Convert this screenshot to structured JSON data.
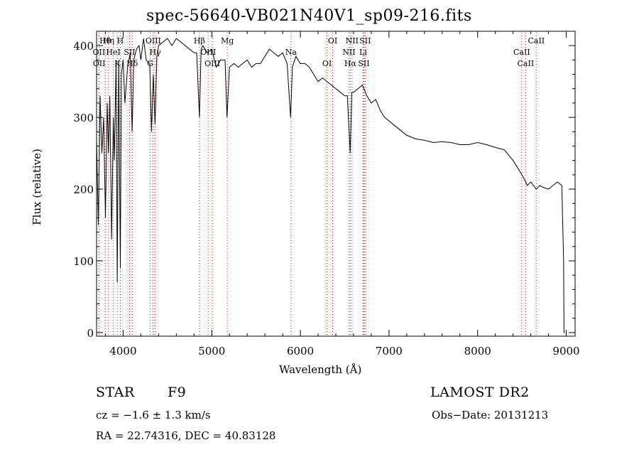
{
  "chart_data": {
    "type": "line",
    "title": "spec-56640-VB021N40V1_sp09-216.fits",
    "xlabel": "Wavelength (Å)",
    "ylabel": "Flux (relative)",
    "xlim": [
      3700,
      9100
    ],
    "ylim": [
      -5,
      420
    ],
    "x_ticks": [
      4000,
      5000,
      6000,
      7000,
      8000,
      9000
    ],
    "y_ticks": [
      0,
      100,
      200,
      300,
      400
    ],
    "grid": false,
    "colors": {
      "spectrum": "#000000",
      "line_markers": "#ff0000"
    },
    "series": [
      {
        "x": [
          3700,
          3720,
          3740,
          3760,
          3780,
          3800,
          3820,
          3835,
          3850,
          3870,
          3889,
          3900,
          3920,
          3933,
          3950,
          3968,
          3980,
          4000,
          4020,
          4050,
          4080,
          4101,
          4120,
          4150,
          4180,
          4200,
          4230,
          4260,
          4300,
          4320,
          4340,
          4360,
          4380,
          4400,
          4450,
          4500,
          4550,
          4600,
          4650,
          4700,
          4750,
          4800,
          4830,
          4861,
          4880,
          4900,
          4950,
          5000,
          5050,
          5100,
          5150,
          5172,
          5200,
          5250,
          5300,
          5350,
          5400,
          5450,
          5500,
          5550,
          5600,
          5650,
          5700,
          5750,
          5800,
          5850,
          5890,
          5910,
          5950,
          6000,
          6050,
          6100,
          6150,
          6200,
          6250,
          6300,
          6350,
          6400,
          6450,
          6500,
          6530,
          6563,
          6580,
          6600,
          6650,
          6700,
          6750,
          6800,
          6850,
          6900,
          6950,
          7000,
          7050,
          7100,
          7150,
          7200,
          7300,
          7400,
          7500,
          7600,
          7700,
          7800,
          7900,
          8000,
          8100,
          8200,
          8300,
          8400,
          8450,
          8500,
          8542,
          8560,
          8600,
          8662,
          8700,
          8750,
          8800,
          8850,
          8900,
          8950,
          8970,
          8975,
          8985
        ],
        "y": [
          270,
          150,
          330,
          250,
          300,
          160,
          320,
          250,
          330,
          130,
          300,
          240,
          380,
          70,
          380,
          90,
          360,
          380,
          320,
          370,
          390,
          280,
          380,
          395,
          400,
          380,
          410,
          380,
          375,
          280,
          360,
          290,
          385,
          400,
          405,
          410,
          400,
          410,
          405,
          400,
          395,
          390,
          390,
          300,
          395,
          400,
          390,
          395,
          370,
          380,
          380,
          300,
          370,
          375,
          370,
          375,
          380,
          370,
          375,
          375,
          385,
          395,
          390,
          385,
          390,
          375,
          300,
          370,
          385,
          375,
          375,
          370,
          360,
          350,
          355,
          350,
          345,
          340,
          335,
          330,
          330,
          250,
          335,
          335,
          340,
          345,
          330,
          320,
          325,
          310,
          300,
          295,
          290,
          285,
          280,
          275,
          270,
          268,
          265,
          266,
          265,
          262,
          262,
          265,
          262,
          258,
          255,
          240,
          230,
          220,
          210,
          205,
          210,
          200,
          205,
          202,
          200,
          205,
          210,
          205,
          100,
          0,
          0
        ]
      }
    ],
    "line_markers": [
      {
        "label": "Hθ",
        "x": 3798
      },
      {
        "label": "OII",
        "x": 3727
      },
      {
        "label": "OII",
        "x": 3729
      },
      {
        "label": "Hη",
        "x": 3835
      },
      {
        "label": "HeI",
        "x": 3889
      },
      {
        "label": "K",
        "x": 3934
      },
      {
        "label": "H",
        "x": 3968
      },
      {
        "label": "SII",
        "x": 4072
      },
      {
        "label": "Hδ",
        "x": 4102
      },
      {
        "label": "OIII",
        "x": 4340
      },
      {
        "label": "Hγ",
        "x": 4362
      },
      {
        "label": "G",
        "x": 4305
      },
      {
        "label": "Hβ",
        "x": 4861
      },
      {
        "label": "OIII",
        "x": 4959
      },
      {
        "label": "OIII",
        "x": 5007
      },
      {
        "label": "Mg",
        "x": 5175
      },
      {
        "label": "Na",
        "x": 5894
      },
      {
        "label": "OI",
        "x": 6300
      },
      {
        "label": "OI",
        "x": 6364
      },
      {
        "label": "NII",
        "x": 6548
      },
      {
        "label": "Hα",
        "x": 6563
      },
      {
        "label": "NII",
        "x": 6583
      },
      {
        "label": "Li",
        "x": 6708
      },
      {
        "label": "SII",
        "x": 6716
      },
      {
        "label": "SII",
        "x": 6731
      },
      {
        "label": "CaII",
        "x": 8498
      },
      {
        "label": "CaII",
        "x": 8542
      },
      {
        "label": "CaII",
        "x": 8662
      }
    ]
  },
  "info": {
    "object_class": "STAR",
    "subclass": "F9",
    "survey": "LAMOST DR2",
    "redshift": "cz = −1.6 ± 1.3 km/s",
    "obs_date": "Obs−Date: 20131213",
    "coords": "RA =  22.74316, DEC =  40.83128"
  }
}
